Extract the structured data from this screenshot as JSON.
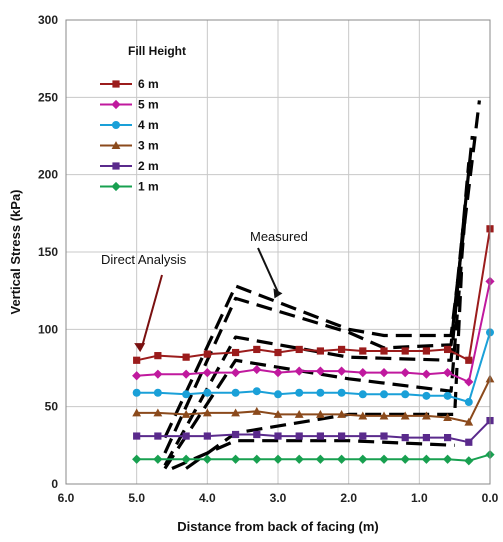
{
  "chart_data": {
    "type": "line",
    "xlabel": "Distance from back of facing (m)",
    "ylabel": "Vertical Stress (kPa)",
    "xlim": [
      6.0,
      0.0
    ],
    "ylim": [
      0,
      300
    ],
    "x_ticks": [
      "6.0",
      "5.0",
      "4.0",
      "3.0",
      "2.0",
      "1.0",
      "0.0"
    ],
    "y_ticks": [
      "0",
      "50",
      "100",
      "150",
      "200",
      "250",
      "300"
    ],
    "grid": true,
    "legend": {
      "title": "Fill Height",
      "placement": "top-left"
    },
    "series": [
      {
        "name": "6 m",
        "color": "#9b1c1c",
        "marker": "square",
        "x": [
          5.0,
          4.7,
          4.3,
          4.0,
          3.6,
          3.3,
          3.0,
          2.7,
          2.4,
          2.1,
          1.8,
          1.5,
          1.2,
          0.9,
          0.6,
          0.3,
          0.0
        ],
        "y": [
          80,
          83,
          82,
          84,
          85,
          87,
          85,
          87,
          86,
          87,
          86,
          86,
          86,
          86,
          87,
          80,
          165
        ]
      },
      {
        "name": "5 m",
        "color": "#c0199e",
        "marker": "diamond",
        "x": [
          5.0,
          4.7,
          4.3,
          4.0,
          3.6,
          3.3,
          3.0,
          2.7,
          2.4,
          2.1,
          1.8,
          1.5,
          1.2,
          0.9,
          0.6,
          0.3,
          0.0
        ],
        "y": [
          70,
          71,
          71,
          72,
          72,
          74,
          72,
          73,
          73,
          73,
          72,
          72,
          72,
          71,
          72,
          66,
          131
        ]
      },
      {
        "name": "4 m",
        "color": "#1aa0d8",
        "marker": "circle",
        "x": [
          5.0,
          4.7,
          4.3,
          4.0,
          3.6,
          3.3,
          3.0,
          2.7,
          2.4,
          2.1,
          1.8,
          1.5,
          1.2,
          0.9,
          0.6,
          0.3,
          0.0
        ],
        "y": [
          59,
          59,
          58,
          59,
          59,
          60,
          58,
          59,
          59,
          59,
          58,
          58,
          58,
          57,
          57,
          53,
          98
        ]
      },
      {
        "name": "3 m",
        "color": "#8b4a1c",
        "marker": "triangle",
        "x": [
          5.0,
          4.7,
          4.3,
          4.0,
          3.6,
          3.3,
          3.0,
          2.7,
          2.4,
          2.1,
          1.8,
          1.5,
          1.2,
          0.9,
          0.6,
          0.3,
          0.0
        ],
        "y": [
          46,
          46,
          45,
          46,
          46,
          47,
          45,
          45,
          45,
          45,
          44,
          44,
          44,
          44,
          43,
          40,
          68
        ]
      },
      {
        "name": "2 m",
        "color": "#5a2a8c",
        "marker": "square",
        "x": [
          5.0,
          4.7,
          4.3,
          4.0,
          3.6,
          3.3,
          3.0,
          2.7,
          2.4,
          2.1,
          1.8,
          1.5,
          1.2,
          0.9,
          0.6,
          0.3,
          0.0
        ],
        "y": [
          31,
          31,
          31,
          31,
          32,
          32,
          31,
          31,
          31,
          31,
          31,
          31,
          30,
          30,
          30,
          27,
          41
        ]
      },
      {
        "name": "1 m",
        "color": "#18a050",
        "marker": "diamond",
        "x": [
          5.0,
          4.7,
          4.3,
          4.0,
          3.6,
          3.3,
          3.0,
          2.7,
          2.4,
          2.1,
          1.8,
          1.5,
          1.2,
          0.9,
          0.6,
          0.3,
          0.0
        ],
        "y": [
          16,
          16,
          16,
          16,
          16,
          16,
          16,
          16,
          16,
          16,
          16,
          16,
          16,
          16,
          16,
          15,
          19
        ]
      }
    ],
    "measured": {
      "color": "#000000",
      "lines": [
        {
          "x": [
            4.6,
            3.6,
            2.0,
            1.5,
            0.55,
            0.15
          ],
          "y": [
            30,
            128,
            100,
            96,
            96,
            248
          ]
        },
        {
          "x": [
            4.6,
            3.6,
            2.0,
            1.5,
            0.55,
            0.25
          ],
          "y": [
            20,
            120,
            98,
            88,
            90,
            225
          ]
        },
        {
          "x": [
            4.6,
            3.6,
            2.0,
            0.55,
            0.3
          ],
          "y": [
            12,
            95,
            82,
            80,
            208
          ]
        },
        {
          "x": [
            4.6,
            3.6,
            2.0,
            0.55,
            0.35
          ],
          "y": [
            10,
            80,
            68,
            60,
            175
          ]
        },
        {
          "x": [
            4.3,
            3.6,
            2.0,
            0.5,
            0.4
          ],
          "y": [
            10,
            33,
            45,
            45,
            140
          ]
        },
        {
          "x": [
            4.5,
            3.6,
            2.0,
            0.5
          ],
          "y": [
            10,
            28,
            28,
            25
          ]
        }
      ]
    },
    "annotations": [
      {
        "text": "Direct Analysis",
        "arrow_to": {
          "x": 4.95,
          "y": 84
        }
      },
      {
        "text": "Measured",
        "arrow_to": {
          "x": 3.05,
          "y": 120
        }
      }
    ]
  }
}
